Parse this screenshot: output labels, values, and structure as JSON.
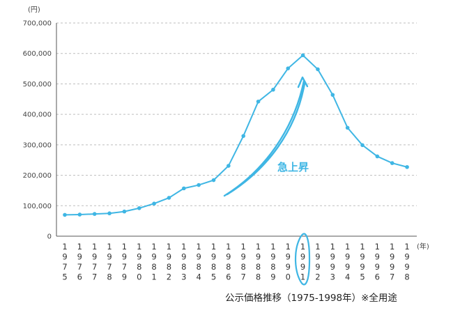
{
  "chart_data": {
    "type": "line",
    "y_unit": "(円)",
    "x_unit": "(年)",
    "caption": "公示価格推移（1975-1998年）※全用途",
    "annotation": "急上昇",
    "ylim": [
      0,
      700000
    ],
    "y_ticks": [
      "700,000",
      "600,000",
      "500,000",
      "400,000",
      "300,000",
      "200,000",
      "100,000",
      "0"
    ],
    "grid": true,
    "line_color": "#3fb6e4",
    "highlight_year": "1991",
    "categories": [
      "1975",
      "1976",
      "1977",
      "1978",
      "1979",
      "1980",
      "1981",
      "1982",
      "1983",
      "1984",
      "1985",
      "1986",
      "1987",
      "1988",
      "1989",
      "1990",
      "1991",
      "1992",
      "1993",
      "1994",
      "1995",
      "1996",
      "1997",
      "1998"
    ],
    "series": [
      {
        "values": [
          70000,
          71000,
          73000,
          75000,
          81000,
          92000,
          107000,
          126000,
          157000,
          168000,
          184000,
          231000,
          329000,
          442000,
          481000,
          551000,
          594000,
          548000,
          464000,
          356000,
          299000,
          262000,
          240000,
          227000
        ]
      }
    ]
  }
}
